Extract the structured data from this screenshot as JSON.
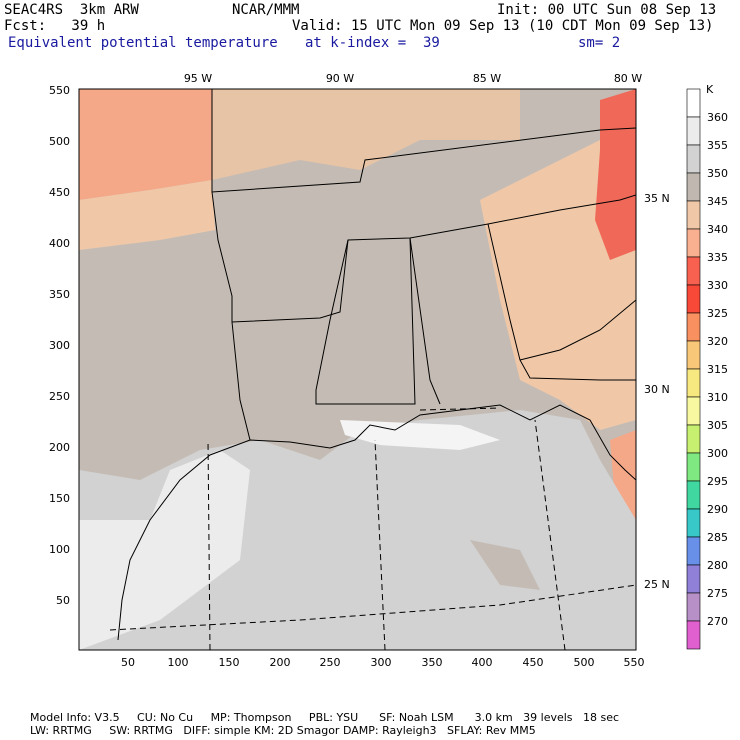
{
  "header": {
    "model": "SEAC4RS  3km ARW",
    "org": "NCAR/MMM",
    "init": "Init: 00 UTC Sun 08 Sep 13",
    "fcst": "Fcst:   39 h",
    "valid": "Valid: 15 UTC Mon 09 Sep 13 (10 CDT Mon 09 Sep 13)",
    "field": "Equivalent potential temperature",
    "level": "at k-index =  39",
    "smooth": "sm= 2"
  },
  "axes": {
    "x_ticks": [
      "50",
      "100",
      "150",
      "200",
      "250",
      "300",
      "350",
      "400",
      "450",
      "500",
      "550"
    ],
    "y_ticks": [
      "50",
      "100",
      "150",
      "200",
      "250",
      "300",
      "350",
      "400",
      "450",
      "500",
      "550"
    ],
    "lon_labels": [
      "95 W",
      "90 W",
      "85 W",
      "80 W"
    ],
    "lat_labels": [
      "35 N",
      "30 N",
      "25 N"
    ]
  },
  "legend": {
    "unit": "K",
    "levels": [
      "360",
      "355",
      "350",
      "345",
      "340",
      "335",
      "330",
      "325",
      "320",
      "315",
      "310",
      "305",
      "300",
      "295",
      "290",
      "285",
      "280",
      "275",
      "270"
    ],
    "colors": [
      "#ffffff",
      "#ececec",
      "#d2d2d2",
      "#c0b8b0",
      "#f0c8a8",
      "#f8b090",
      "#f86050",
      "#f84838",
      "#f89060",
      "#f8c878",
      "#f8e880",
      "#f8f8a0",
      "#c8f070",
      "#80e880",
      "#40d8a0",
      "#38c8c8",
      "#6890e8",
      "#9080d8",
      "#b890c8",
      "#e060d0"
    ]
  },
  "footer": {
    "line1": "Model Info: V3.5     CU: No Cu     MP: Thompson     PBL: YSU      SF: Noah LSM      3.0 km   39 levels   18 sec",
    "line2": "LW: RRTMG     SW: RRTMG   DIFF: simple KM: 2D Smagor DAMP: Rayleigh3   SFLAY: Rev MM5"
  }
}
